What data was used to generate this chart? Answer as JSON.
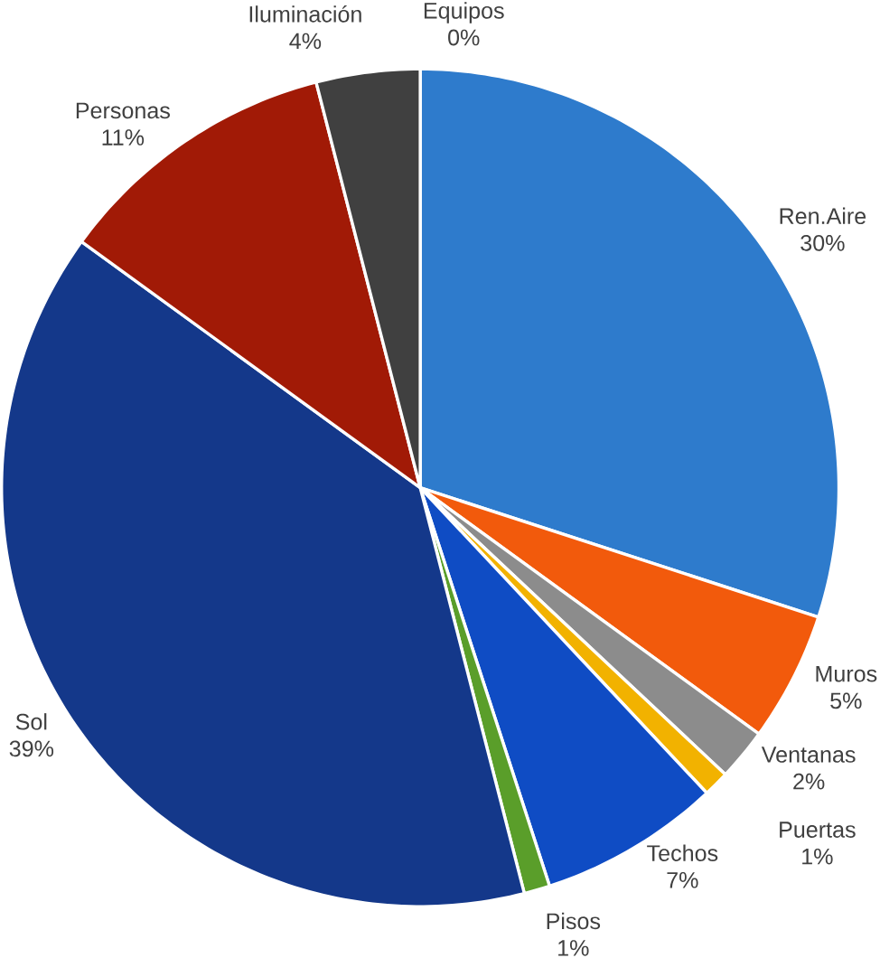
{
  "chart_data": {
    "type": "pie",
    "categories": [
      "Ren.Aire",
      "Muros",
      "Ventanas",
      "Puertas",
      "Techos",
      "Pisos",
      "Sol",
      "Personas",
      "Iluminación",
      "Equipos"
    ],
    "values": [
      30,
      5,
      2,
      1,
      7,
      1,
      39,
      11,
      4,
      0
    ],
    "value_labels": [
      "30%",
      "5%",
      "2%",
      "1%",
      "7%",
      "1%",
      "39%",
      "11%",
      "4%",
      "0%"
    ],
    "colors": [
      "#2e7bcc",
      "#f25a0c",
      "#8c8c8c",
      "#f2b200",
      "#0f4cc4",
      "#5a9e2a",
      "#14388a",
      "#a11a06",
      "#404040",
      "#4472c4"
    ]
  }
}
